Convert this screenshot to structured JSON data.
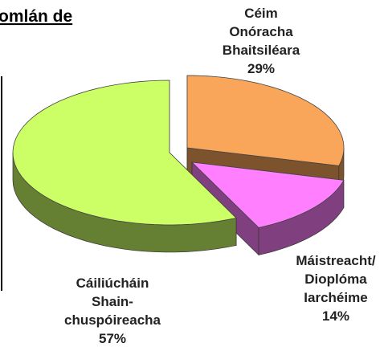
{
  "chart_data": {
    "type": "pie3d",
    "title": "omlán de",
    "categories": [
      [
        "Céim",
        "Onóracha",
        "Bhaitsiléara"
      ],
      [
        "Máistreacht/",
        "Dioplóma",
        "Iarchéime"
      ],
      [
        "Cáiliúcháin",
        "Shain-",
        "chuspóireacha"
      ]
    ],
    "values": [
      29,
      14,
      57
    ],
    "value_labels": [
      "29%",
      "14%",
      "57%"
    ],
    "colors": [
      "#f9a65a",
      "#ff7fff",
      "#ccff66"
    ]
  }
}
